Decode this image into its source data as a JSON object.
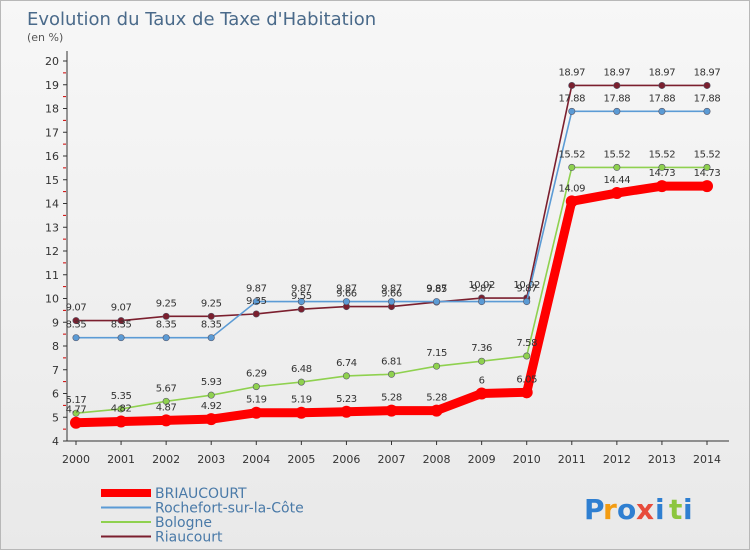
{
  "chart_data": {
    "type": "line",
    "title": "Evolution du Taux de Taxe d'Habitation",
    "ylabel": "(en %)",
    "xlabel": "",
    "x": [
      "2000",
      "2001",
      "2002",
      "2003",
      "2004",
      "2005",
      "2006",
      "2007",
      "2008",
      "2009",
      "2010",
      "2011",
      "2012",
      "2013",
      "2014"
    ],
    "ylim": [
      4,
      20
    ],
    "yticks": [
      "4",
      "5",
      "6",
      "7",
      "8",
      "9",
      "10",
      "11",
      "12",
      "13",
      "14",
      "15",
      "16",
      "17",
      "18",
      "19",
      "20"
    ],
    "grid": false,
    "legend_position": "bottom-left",
    "series": [
      {
        "name": "BRIAUCOURT",
        "color": "#ff0000",
        "values": [
          4.77,
          4.82,
          4.87,
          4.92,
          5.19,
          5.19,
          5.23,
          5.28,
          5.28,
          6,
          6.05,
          14.09,
          14.44,
          14.73,
          14.73
        ],
        "labels": [
          "4.77",
          "4.82",
          "4.87",
          "4.92",
          "5.19",
          "5.19",
          "5.23",
          "5.28",
          "5.28",
          "6",
          "6.05",
          "14.09",
          "14.44",
          "14.73",
          "14.73"
        ]
      },
      {
        "name": "Rochefort-sur-la-Côte",
        "color": "#5b9bd5",
        "values": [
          8.35,
          8.35,
          8.35,
          8.35,
          9.87,
          9.87,
          9.87,
          9.87,
          9.87,
          9.87,
          9.87,
          17.88,
          17.88,
          17.88,
          17.88
        ],
        "labels": [
          "8.35",
          "8.35",
          "8.35",
          "8.35",
          "9.87",
          "9.87",
          "9.87",
          "9.87",
          "9.87",
          "9.87",
          "9.87",
          "17.88",
          "17.88",
          "17.88",
          "17.88"
        ]
      },
      {
        "name": "Bologne",
        "color": "#8fd14f",
        "values": [
          5.17,
          5.35,
          5.67,
          5.93,
          6.29,
          6.48,
          6.74,
          6.81,
          7.15,
          7.36,
          7.58,
          15.52,
          15.52,
          15.52,
          15.52
        ],
        "labels": [
          "5.17",
          "5.35",
          "5.67",
          "5.93",
          "6.29",
          "6.48",
          "6.74",
          "6.81",
          "7.15",
          "7.36",
          "7.58",
          "15.52",
          "15.52",
          "15.52",
          "15.52"
        ]
      },
      {
        "name": "Riaucourt",
        "color": "#7b1f2e",
        "values": [
          9.07,
          9.07,
          9.25,
          9.25,
          9.35,
          9.55,
          9.66,
          9.66,
          9.85,
          10.02,
          10.02,
          18.97,
          18.97,
          18.97,
          18.97
        ],
        "labels": [
          "9.07",
          "9.07",
          "9.25",
          "9.25",
          "9.35",
          "9.55",
          "9.66",
          "9.66",
          "9.85",
          "10.02",
          "10.02",
          "18.97",
          "18.97",
          "18.97",
          "18.97"
        ]
      }
    ]
  },
  "brand": {
    "letters": [
      "P",
      "r",
      "o",
      "x",
      "i",
      "t",
      "i"
    ],
    "colors": [
      "#2f7fd1",
      "#f39c12",
      "#2f7fd1",
      "#e74c3c",
      "#2f7fd1",
      "#8cc63f",
      "#2f7fd1"
    ]
  }
}
